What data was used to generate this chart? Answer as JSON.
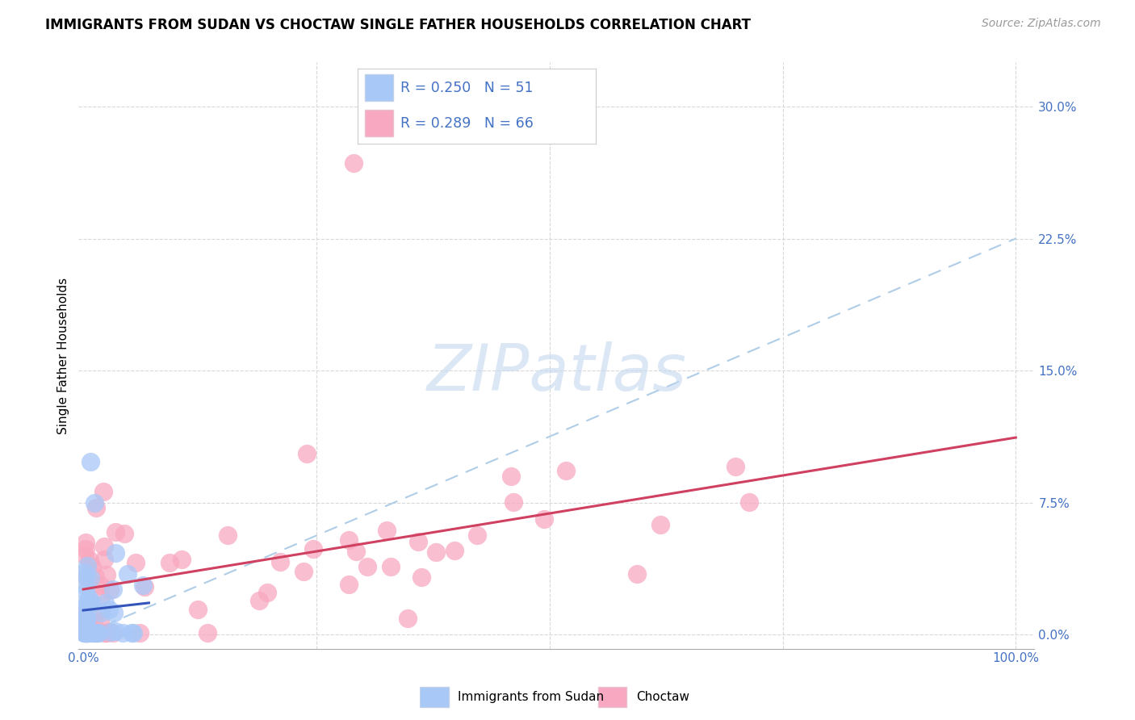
{
  "title": "IMMIGRANTS FROM SUDAN VS CHOCTAW SINGLE FATHER HOUSEHOLDS CORRELATION CHART",
  "source": "Source: ZipAtlas.com",
  "ylabel": "Single Father Households",
  "ytick_labels": [
    "0.0%",
    "7.5%",
    "15.0%",
    "22.5%",
    "30.0%"
  ],
  "ytick_values": [
    0.0,
    0.075,
    0.15,
    0.225,
    0.3
  ],
  "xlim": [
    0.0,
    1.0
  ],
  "ylim": [
    0.0,
    0.32
  ],
  "legend1_text": "R = 0.250   N = 51",
  "legend2_text": "R = 0.289   N = 66",
  "bottom_legend1": "Immigrants from Sudan",
  "bottom_legend2": "Choctaw",
  "blue_scatter_color": "#A8C8F8",
  "pink_scatter_color": "#F8A8C0",
  "blue_line_color": "#3355BB",
  "pink_line_color": "#D04060",
  "blue_dashed_color": "#B0CDE8",
  "grid_color": "#D8D8D8",
  "background_color": "#FFFFFF",
  "watermark_text": "ZIPatlas",
  "watermark_color": "#C5D8F0",
  "title_fontsize": 12,
  "source_fontsize": 10,
  "tick_color": "#4472C4",
  "tick_fontsize": 11,
  "ylabel_fontsize": 11,
  "seed": 7
}
